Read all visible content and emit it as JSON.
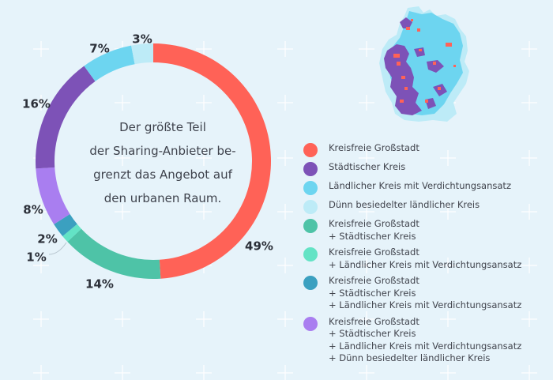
{
  "chart_data": {
    "type": "pie",
    "subtype": "donut",
    "title": "",
    "center_text": [
      "Der größte Teil",
      "der Sharing-Anbieter be-",
      "grenzt das Angebot auf",
      "den urbanen Raum."
    ],
    "unit": "%",
    "slices": [
      {
        "label": "Kreisfreie Großstadt",
        "value": 49,
        "display": "49%",
        "color": "#ff6257"
      },
      {
        "label": "Kreisfreie Großstadt + Städtischer Kreis",
        "value": 14,
        "display": "14%",
        "color": "#4ec3a7"
      },
      {
        "label": "Kreisfreie Großstadt + Ländlicher Kreis mit Verdichtungsansatz",
        "value": 1,
        "display": "1%",
        "color": "#63e3c5"
      },
      {
        "label": "Kreisfreie Großstadt + Städtischer Kreis + Ländlicher Kreis mit Verdichtungsansatz",
        "value": 2,
        "display": "2%",
        "color": "#3ba0c0"
      },
      {
        "label": "Kreisfreie Großstadt + Städtischer Kreis + Ländlicher Kreis mit Verdichtungsansatz + Dünn besiedelter ländlicher Kreis",
        "value": 8,
        "display": "8%",
        "color": "#a97ef0"
      },
      {
        "label": "Städtischer Kreis",
        "value": 16,
        "display": "16%",
        "color": "#7d52b7"
      },
      {
        "label": "Ländlicher Kreis mit Verdichtungsansatz",
        "value": 7,
        "display": "7%",
        "color": "#6dd5f0"
      },
      {
        "label": "Dünn besiedelter ländlicher Kreis",
        "value": 3,
        "display": "3%",
        "color": "#bdebf7"
      }
    ],
    "legend_position": "right"
  },
  "legend": [
    {
      "color": "#ff6257",
      "lines": [
        "Kreisfreie Großstadt"
      ]
    },
    {
      "color": "#7d52b7",
      "lines": [
        "Städtischer Kreis"
      ]
    },
    {
      "color": "#6dd5f0",
      "lines": [
        "Ländlicher Kreis mit Verdichtungsansatz"
      ]
    },
    {
      "color": "#bdebf7",
      "lines": [
        "Dünn besiedelter ländlicher Kreis"
      ]
    },
    {
      "color": "#4ec3a7",
      "lines": [
        "Kreisfreie Großstadt",
        "+ Städtischer Kreis"
      ]
    },
    {
      "color": "#63e3c5",
      "lines": [
        "Kreisfreie Großstadt",
        "+ Ländlicher Kreis mit Verdichtungsansatz"
      ]
    },
    {
      "color": "#3ba0c0",
      "lines": [
        "Kreisfreie Großstadt",
        "+ Städtischer Kreis",
        "+ Ländlicher Kreis mit Verdichtungsansatz"
      ]
    },
    {
      "color": "#a97ef0",
      "lines": [
        "Kreisfreie Großstadt",
        "+ Städtischer Kreis",
        "+ Ländlicher Kreis mit Verdichtungsansatz",
        "+ Dünn besiedelter ländlicher Kreis"
      ]
    }
  ],
  "map": {
    "name": "Germany district map",
    "colors": {
      "city": "#ff6257",
      "urban": "#7d52b7",
      "rural_dense": "#6dd5f0",
      "rural_sparse": "#bdebf7"
    }
  }
}
